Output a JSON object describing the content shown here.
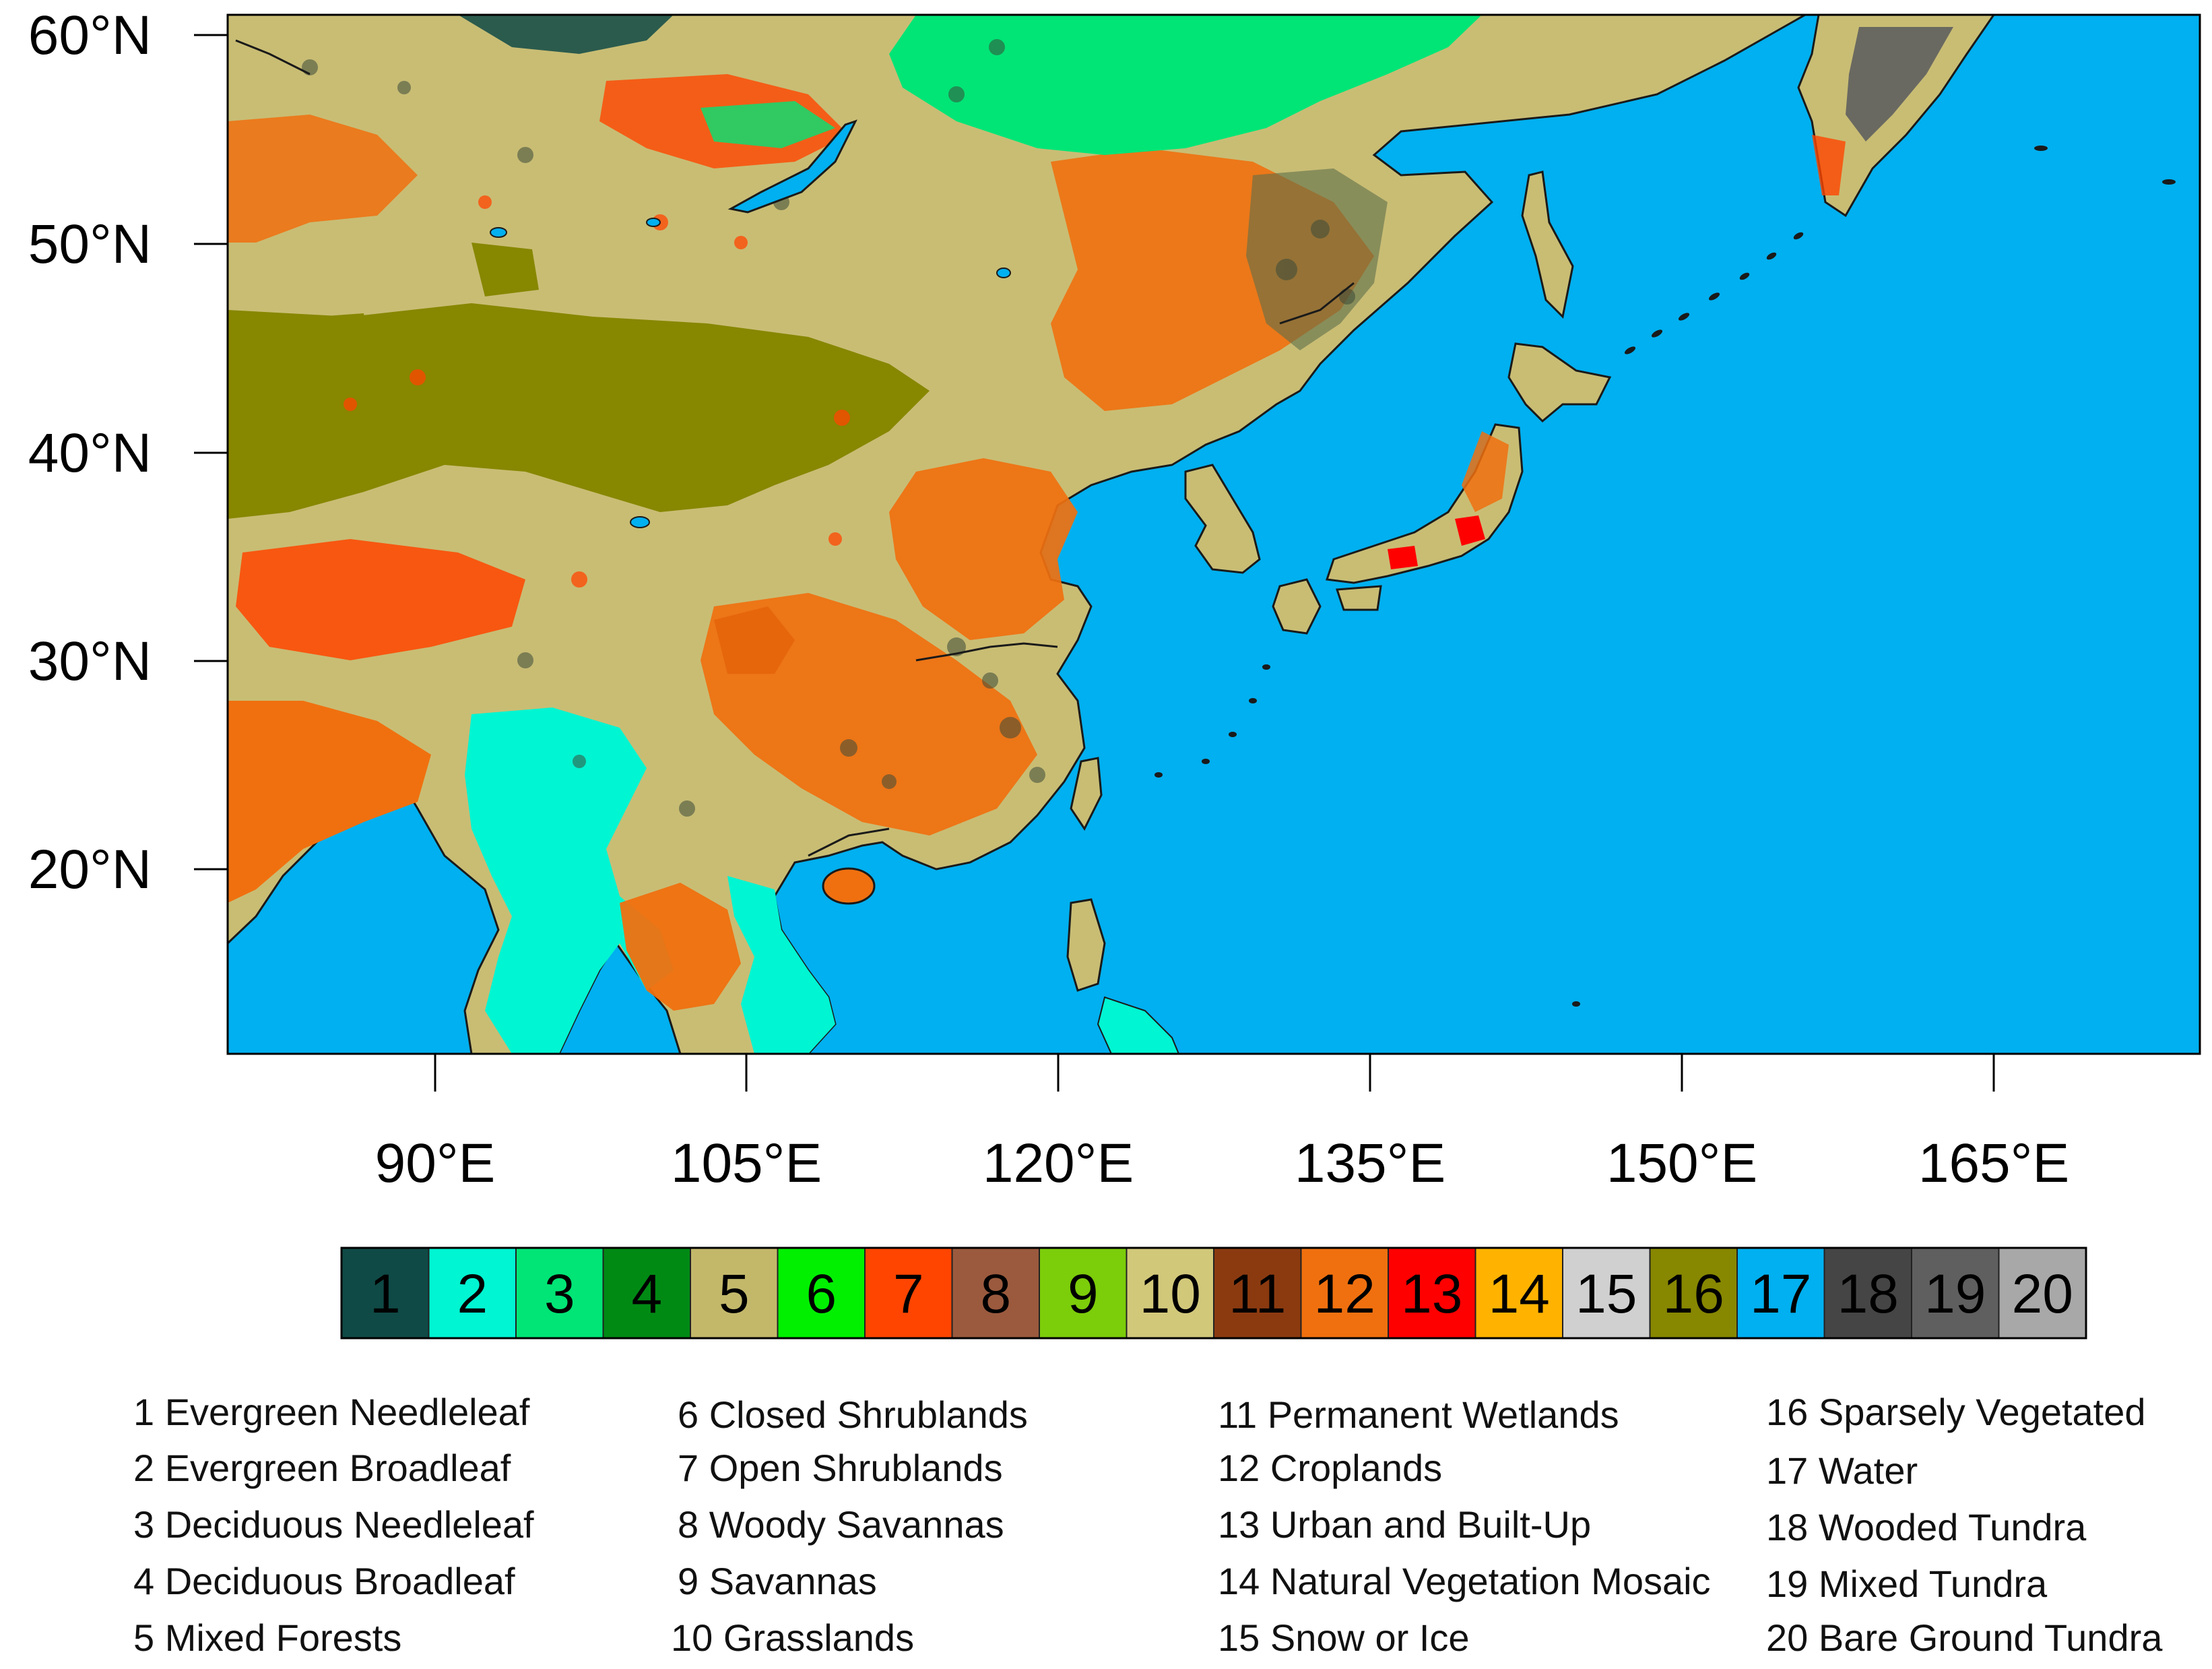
{
  "map": {
    "lat_ticks": [
      "60°N",
      "50°N",
      "40°N",
      "30°N",
      "20°N"
    ],
    "lon_ticks": [
      "90°E",
      "105°E",
      "120°E",
      "135°E",
      "150°E",
      "165°E"
    ],
    "ocean_color": "#00b0f0",
    "coastline_color": "#1a1a1a"
  },
  "colorbar": {
    "classes": [
      {
        "id": "1",
        "color": "#0f4a46",
        "text": "#000000"
      },
      {
        "id": "2",
        "color": "#00f5d2",
        "text": "#000000"
      },
      {
        "id": "3",
        "color": "#00e576",
        "text": "#000000"
      },
      {
        "id": "4",
        "color": "#008a14",
        "text": "#000000"
      },
      {
        "id": "5",
        "color": "#c3b86a",
        "text": "#000000"
      },
      {
        "id": "6",
        "color": "#00f000",
        "text": "#000000"
      },
      {
        "id": "7",
        "color": "#ff4500",
        "text": "#000000"
      },
      {
        "id": "8",
        "color": "#9b5a3e",
        "text": "#000000"
      },
      {
        "id": "9",
        "color": "#7ccd0a",
        "text": "#000000"
      },
      {
        "id": "10",
        "color": "#d2c87a",
        "text": "#000000"
      },
      {
        "id": "11",
        "color": "#8b3a10",
        "text": "#000000"
      },
      {
        "id": "12",
        "color": "#f0700f",
        "text": "#000000"
      },
      {
        "id": "13",
        "color": "#ff0000",
        "text": "#000000"
      },
      {
        "id": "14",
        "color": "#ffb300",
        "text": "#000000"
      },
      {
        "id": "15",
        "color": "#d0d0d0",
        "text": "#000000"
      },
      {
        "id": "16",
        "color": "#878700",
        "text": "#000000"
      },
      {
        "id": "17",
        "color": "#00b0f0",
        "text": "#000000"
      },
      {
        "id": "18",
        "color": "#454545",
        "text": "#000000"
      },
      {
        "id": "19",
        "color": "#5f5f5f",
        "text": "#000000"
      },
      {
        "id": "20",
        "color": "#a8a8a8",
        "text": "#000000"
      }
    ]
  },
  "legend": {
    "col1": [
      "1 Evergreen Needleleaf",
      "2 Evergreen Broadleaf",
      "3 Deciduous Needleleaf",
      "4 Deciduous Broadleaf",
      "5 Mixed Forests"
    ],
    "col2": [
      "6 Closed Shrublands",
      "7 Open Shrublands",
      "8 Woody Savannas",
      "9 Savannas",
      "10 Grasslands"
    ],
    "col3": [
      "11 Permanent Wetlands",
      "12 Croplands",
      "13 Urban and Built-Up",
      "14 Natural Vegetation Mosaic",
      "15 Snow or Ice"
    ],
    "col4": [
      "16 Sparsely Vegetated",
      "17 Water",
      "18 Wooded Tundra",
      "19 Mixed Tundra",
      "20 Bare Ground Tundra"
    ]
  }
}
